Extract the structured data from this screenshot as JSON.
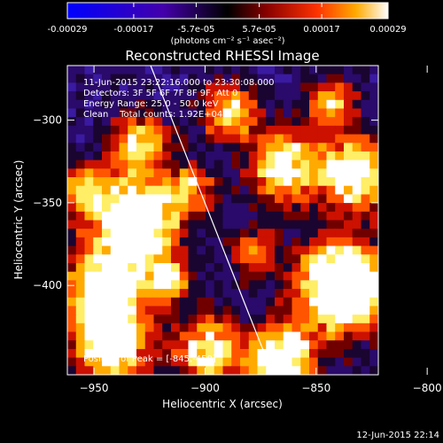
{
  "colorbar": {
    "tick_labels": [
      "-0.00029",
      "-0.00017",
      "-5.7e-05",
      "5.7e-05",
      "0.00017",
      "0.00029"
    ],
    "range": [
      -0.00029,
      0.00029
    ],
    "units": "(photons cm⁻² s⁻¹ asec⁻²)",
    "colormap": [
      "#0000ff",
      "#4400aa",
      "#000000",
      "#880000",
      "#ff3300",
      "#ffaa00",
      "#ffffff"
    ]
  },
  "plot": {
    "title": "Reconstructed RHESSI Image",
    "info_lines": [
      "11-Jun-2015 23:22:16.000 to 23:30:08.000",
      "Detectors: 3F 5F 6F 7F 8F 9F, Att 0",
      "Energy Range: 25.0 - 50.0 keV",
      "Clean    Total counts: 1.92E+04"
    ],
    "peak_label": "Position of Peak = [-845,-450]",
    "xlabel": "Heliocentric X (arcsec)",
    "ylabel": "Heliocentric Y (arcsec)",
    "x_ticks": [
      "-950",
      "-900",
      "-850",
      "-800"
    ],
    "y_ticks": [
      "-300",
      "-350",
      "-400"
    ],
    "xlim": [
      -962,
      -822
    ],
    "ylim": [
      -454,
      -267
    ]
  },
  "footer": {
    "timestamp": "12-Jun-2015 22:14"
  }
}
